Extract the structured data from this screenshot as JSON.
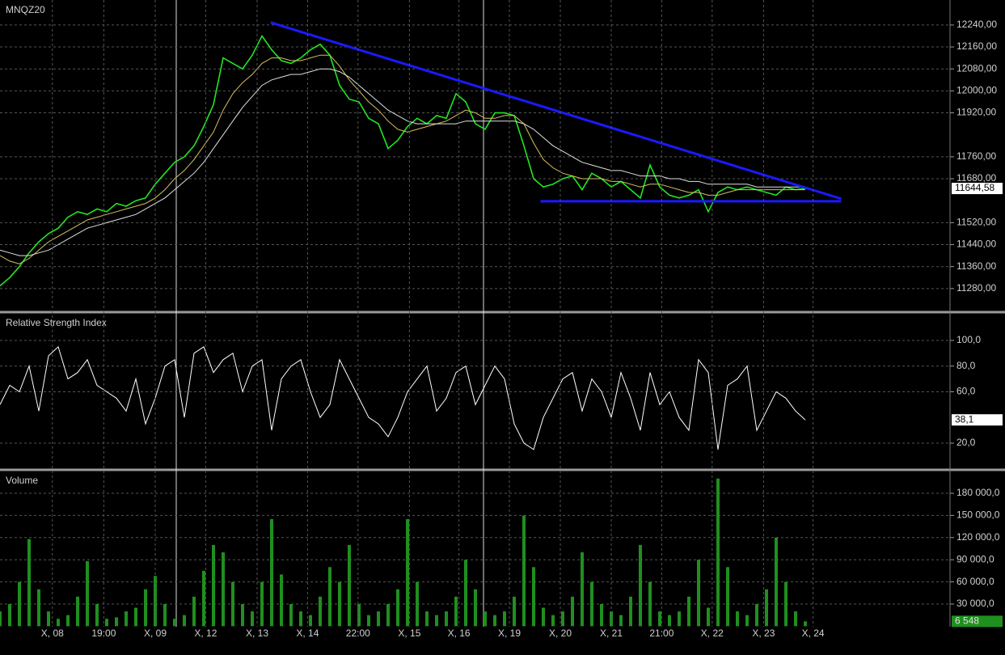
{
  "chart_data": [
    {
      "type": "line",
      "title": "MNQZ20",
      "xlim": [
        0,
        98
      ],
      "series": [
        {
          "color": "#22e622",
          "values": [
            11290,
            11320,
            11360,
            11410,
            11450,
            11480,
            11500,
            11540,
            11560,
            11550,
            11570,
            11560,
            11590,
            11580,
            11600,
            11610,
            11660,
            11700,
            11740,
            11760,
            11800,
            11870,
            11950,
            12120,
            12100,
            12080,
            12130,
            12200,
            12150,
            12110,
            12100,
            12120,
            12150,
            12170,
            12130,
            12020,
            11970,
            11960,
            11900,
            11880,
            11790,
            11820,
            11870,
            11900,
            11880,
            11910,
            11900,
            11990,
            11960,
            11880,
            11860,
            11920,
            11920,
            11910,
            11800,
            11680,
            11650,
            11660,
            11680,
            11690,
            11640,
            11700,
            11680,
            11650,
            11670,
            11640,
            11610,
            11730,
            11650,
            11620,
            11610,
            11620,
            11640,
            11560,
            11630,
            11650,
            11640,
            11650,
            11640,
            11630,
            11620,
            11650,
            11640,
            11644.58
          ]
        },
        {
          "color": "#d8c060",
          "values": [
            11400,
            11380,
            11370,
            11390,
            11420,
            11450,
            11470,
            11490,
            11510,
            11530,
            11540,
            11550,
            11560,
            11570,
            11580,
            11590,
            11610,
            11640,
            11680,
            11710,
            11750,
            11800,
            11850,
            11930,
            11990,
            12030,
            12060,
            12100,
            12120,
            12120,
            12110,
            12110,
            12120,
            12130,
            12130,
            12090,
            12040,
            12000,
            11960,
            11930,
            11890,
            11860,
            11850,
            11860,
            11870,
            11880,
            11890,
            11910,
            11930,
            11920,
            11900,
            11900,
            11910,
            11910,
            11880,
            11810,
            11750,
            11720,
            11700,
            11690,
            11680,
            11680,
            11680,
            11670,
            11670,
            11660,
            11650,
            11660,
            11660,
            11650,
            11640,
            11630,
            11630,
            11620,
            11620,
            11630,
            11640,
            11640,
            11640,
            11640,
            11640,
            11640,
            11640,
            11640
          ]
        },
        {
          "color": "#e0e0e0",
          "values": [
            11420,
            11410,
            11400,
            11400,
            11410,
            11420,
            11440,
            11460,
            11480,
            11500,
            11510,
            11520,
            11530,
            11540,
            11550,
            11570,
            11590,
            11610,
            11640,
            11670,
            11700,
            11740,
            11790,
            11840,
            11890,
            11940,
            11980,
            12020,
            12040,
            12050,
            12060,
            12060,
            12070,
            12080,
            12080,
            12070,
            12050,
            12020,
            11990,
            11960,
            11930,
            11910,
            11890,
            11880,
            11880,
            11880,
            11880,
            11880,
            11890,
            11890,
            11890,
            11890,
            11890,
            11890,
            11880,
            11860,
            11830,
            11800,
            11780,
            11760,
            11740,
            11730,
            11720,
            11710,
            11710,
            11700,
            11690,
            11690,
            11690,
            11680,
            11680,
            11670,
            11670,
            11660,
            11660,
            11660,
            11660,
            11660,
            11650,
            11650,
            11650,
            11650,
            11650,
            11650
          ]
        }
      ],
      "ylim": [
        11203,
        12331
      ],
      "yticks": [
        {
          "value": 12240,
          "label": "12240,00"
        },
        {
          "value": 12160,
          "label": "12160,00"
        },
        {
          "value": 12080,
          "label": "12080,00"
        },
        {
          "value": 12000,
          "label": "12000,00"
        },
        {
          "value": 11920,
          "label": "11920,00"
        },
        {
          "value": 11760,
          "label": "11760,00"
        },
        {
          "value": 11680,
          "label": "11680,00"
        },
        {
          "value": 11520,
          "label": "11520,00"
        },
        {
          "value": 11440,
          "label": "11440,00"
        },
        {
          "value": 11360,
          "label": "11360,00"
        },
        {
          "value": 11280,
          "label": "11280,00"
        }
      ],
      "last_value": {
        "value": 11644.58,
        "label": "11644,58"
      },
      "trendlines": [
        {
          "color": "#1a1aff",
          "x": [
            27.9,
            86.7
          ],
          "y": [
            12249,
            11607
          ]
        },
        {
          "color": "#1a1aff",
          "x": [
            55.7,
            86.7
          ],
          "y": [
            11598,
            11598
          ]
        }
      ],
      "grid": true
    },
    {
      "type": "line",
      "title": "Relative Strength Index",
      "xlim": [
        0,
        98
      ],
      "series": [
        {
          "color": "#ffffff",
          "values": [
            50,
            65,
            60,
            80,
            45,
            88,
            95,
            70,
            75,
            85,
            65,
            60,
            55,
            45,
            70,
            35,
            55,
            80,
            85,
            40,
            90,
            95,
            75,
            85,
            90,
            60,
            80,
            85,
            30,
            70,
            80,
            85,
            60,
            40,
            50,
            85,
            70,
            55,
            40,
            35,
            25,
            40,
            60,
            70,
            80,
            45,
            55,
            75,
            80,
            50,
            65,
            80,
            70,
            35,
            20,
            15,
            40,
            55,
            70,
            75,
            45,
            70,
            60,
            40,
            75,
            55,
            30,
            75,
            50,
            60,
            40,
            30,
            85,
            75,
            15,
            65,
            70,
            80,
            30,
            45,
            60,
            55,
            45,
            38.1
          ]
        }
      ],
      "ylim": [
        1.1,
        119.5
      ],
      "yticks": [
        {
          "value": 100,
          "label": "100,0"
        },
        {
          "value": 80,
          "label": "80,0"
        },
        {
          "value": 60,
          "label": "60,0"
        },
        {
          "value": 20,
          "label": "20,0"
        }
      ],
      "last_value": {
        "value": 38.1,
        "label": "38,1"
      },
      "grid": true
    },
    {
      "type": "bar",
      "title": "Volume",
      "xlim": [
        0,
        98
      ],
      "color": "#1f8f1f",
      "values": [
        20000,
        30000,
        60000,
        118000,
        50000,
        20000,
        10000,
        15000,
        40000,
        88000,
        30000,
        10000,
        12000,
        20000,
        25000,
        50000,
        68000,
        30000,
        10000,
        15000,
        40000,
        75000,
        110000,
        100000,
        60000,
        30000,
        20000,
        60000,
        145000,
        70000,
        30000,
        20000,
        15000,
        40000,
        80000,
        60000,
        110000,
        30000,
        15000,
        20000,
        30000,
        50000,
        145000,
        60000,
        20000,
        15000,
        20000,
        40000,
        90000,
        50000,
        20000,
        15000,
        20000,
        40000,
        150000,
        80000,
        25000,
        15000,
        20000,
        40000,
        100000,
        60000,
        30000,
        20000,
        15000,
        40000,
        110000,
        60000,
        20000,
        15000,
        20000,
        40000,
        90000,
        25000,
        200000,
        80000,
        20000,
        15000,
        30000,
        50000,
        120000,
        60000,
        20000,
        6548
      ],
      "ylim": [
        -700,
        207400
      ],
      "yticks": [
        {
          "value": 180000,
          "label": "180 000,0"
        },
        {
          "value": 150000,
          "label": "150 000,0"
        },
        {
          "value": 120000,
          "label": "120 000,0"
        },
        {
          "value": 90000,
          "label": "90 000,0"
        },
        {
          "value": 60000,
          "label": "60 000,0"
        },
        {
          "value": 30000,
          "label": "30 000,0"
        }
      ],
      "last_value": {
        "value": 6548,
        "label": "6 548"
      },
      "xticks": [
        {
          "value": 5.4,
          "label": "X, 08"
        },
        {
          "value": 10.7,
          "label": "19:00"
        },
        {
          "value": 16,
          "label": "X, 09"
        },
        {
          "value": 21.2,
          "label": "X, 12"
        },
        {
          "value": 26.5,
          "label": "X, 13"
        },
        {
          "value": 31.7,
          "label": "X, 14"
        },
        {
          "value": 36.9,
          "label": "22:00"
        },
        {
          "value": 42.2,
          "label": "X, 15"
        },
        {
          "value": 47.3,
          "label": "X, 16"
        },
        {
          "value": 52.5,
          "label": "X, 19"
        },
        {
          "value": 57.75,
          "label": "X, 20"
        },
        {
          "value": 63,
          "label": "X, 21"
        },
        {
          "value": 68.2,
          "label": "21:00"
        },
        {
          "value": 73.4,
          "label": "X, 22"
        },
        {
          "value": 78.7,
          "label": "X, 23"
        },
        {
          "value": 83.8,
          "label": "X, 24"
        }
      ],
      "grid": true
    }
  ]
}
